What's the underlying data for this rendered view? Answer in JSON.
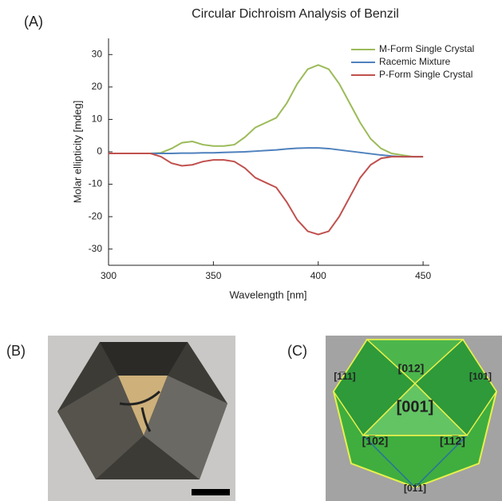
{
  "chart_data": {
    "type": "line",
    "title": "Circular Dichroism Analysis of Benzil",
    "x_label": "Wavelength [nm]",
    "y_label": "Molar ellipticity [mdeg]",
    "x": [
      300,
      305,
      310,
      315,
      320,
      325,
      330,
      335,
      340,
      345,
      350,
      355,
      360,
      365,
      370,
      375,
      380,
      385,
      390,
      395,
      400,
      405,
      410,
      415,
      420,
      425,
      430,
      435,
      440,
      445,
      450
    ],
    "series": [
      {
        "name": "M-Form Single Crystal",
        "color": "#9bbb59",
        "values": [
          -0.5,
          -0.5,
          -0.5,
          -0.5,
          -0.5,
          -0.3,
          1,
          2.8,
          3.2,
          2.2,
          1.8,
          1.8,
          2.2,
          4.5,
          7.5,
          9,
          10.5,
          15,
          21,
          25.5,
          26.8,
          25.5,
          21,
          15,
          9,
          4,
          1,
          -0.5,
          -1,
          -1.5,
          -1.5
        ]
      },
      {
        "name": "Racemic Mixture",
        "color": "#4f81bd",
        "values": [
          -0.5,
          -0.5,
          -0.5,
          -0.5,
          -0.5,
          -0.5,
          -0.5,
          -0.4,
          -0.4,
          -0.3,
          -0.3,
          -0.2,
          -0.1,
          0,
          0.2,
          0.4,
          0.6,
          0.9,
          1.1,
          1.2,
          1.2,
          1,
          0.6,
          0.2,
          -0.2,
          -0.6,
          -1,
          -1.3,
          -1.5,
          -1.5,
          -1.5
        ]
      },
      {
        "name": "P-Form Single Crystal",
        "color": "#c0504d",
        "values": [
          -0.5,
          -0.5,
          -0.5,
          -0.5,
          -0.5,
          -1.5,
          -3.5,
          -4.3,
          -4,
          -3,
          -2.5,
          -2.5,
          -3,
          -5,
          -8,
          -9.5,
          -11,
          -15.5,
          -21,
          -24.5,
          -25.5,
          -24.5,
          -20,
          -14,
          -8,
          -4,
          -2,
          -1.5,
          -1.5,
          -1.5,
          -1.5
        ]
      }
    ],
    "xlim": [
      300,
      453
    ],
    "ylim": [
      -35,
      35
    ],
    "xticks": [
      300,
      350,
      400,
      450
    ],
    "yticks": [
      -30,
      -20,
      -10,
      0,
      10,
      20,
      30
    ],
    "legend": "upper right"
  },
  "figure_labels": {
    "a": "(A)",
    "b": "(B)",
    "c": "(C)"
  },
  "crystal_faces": [
    "[012]",
    "[001]",
    "[1̅02]",
    "[11̅2]",
    "[1̅11]",
    "[101]",
    "[01̅1]"
  ]
}
